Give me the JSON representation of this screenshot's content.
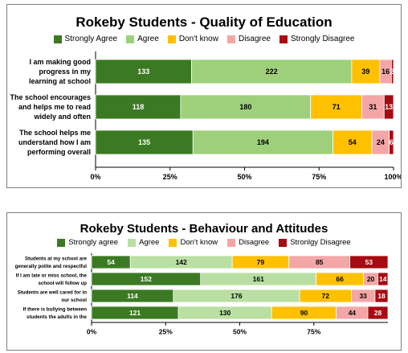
{
  "colors": {
    "strongly_agree": "#3b7a22",
    "agree": "#9ed07b",
    "agree_light": "#b9dfa2",
    "dont_know": "#ffc000",
    "disagree": "#f4a6a6",
    "strongly_disagree": "#a50b11"
  },
  "chart_data": [
    {
      "type": "bar",
      "orientation": "horizontal",
      "stacked": "percent",
      "title": "Rokeby Students - Quality of Education",
      "legend": [
        "Strongly Agree",
        "Agree",
        "Don't know",
        "Disagree",
        "Strongly Disagree"
      ],
      "legend_position": "top",
      "categories": [
        "I am making good progress in my learning at school",
        "The school encourages and helps me to read widely and often",
        "The school helps me understand how I am performing overall"
      ],
      "series": [
        {
          "name": "Strongly Agree",
          "values": [
            133,
            118,
            135
          ]
        },
        {
          "name": "Agree",
          "values": [
            222,
            180,
            194
          ]
        },
        {
          "name": "Don't know",
          "values": [
            39,
            71,
            54
          ]
        },
        {
          "name": "Disagree",
          "values": [
            16,
            31,
            24
          ]
        },
        {
          "name": "Strongly Disagree",
          "values": [
            3,
            13,
            6
          ]
        }
      ],
      "ticks": [
        "0%",
        "25%",
        "50%",
        "75%",
        "100%"
      ],
      "xlim": [
        0,
        100
      ],
      "grid": false
    },
    {
      "type": "bar",
      "orientation": "horizontal",
      "stacked": "percent",
      "title": "Rokeby Students - Behaviour and Attitudes",
      "legend": [
        "Strongly agree",
        "Agree",
        "Don't know",
        "Disagree",
        "Stronlgy Disagree"
      ],
      "legend_position": "top",
      "categories": [
        "Students at my school are generally polite and respectful",
        "If I am late or miss school, the school will follow up",
        "Students are well cared for in our school",
        "If there is bullying between students the adults in the"
      ],
      "series": [
        {
          "name": "Strongly agree",
          "values": [
            54,
            152,
            114,
            121
          ]
        },
        {
          "name": "Agree",
          "values": [
            142,
            161,
            176,
            130
          ]
        },
        {
          "name": "Don't know",
          "values": [
            79,
            66,
            72,
            90
          ]
        },
        {
          "name": "Disagree",
          "values": [
            85,
            20,
            33,
            44
          ]
        },
        {
          "name": "Stronlgy Disagree",
          "values": [
            53,
            14,
            18,
            28
          ]
        }
      ],
      "ticks": [
        "0%",
        "25%",
        "50%",
        "75%"
      ],
      "xlim": [
        0,
        100
      ],
      "grid": false
    }
  ]
}
